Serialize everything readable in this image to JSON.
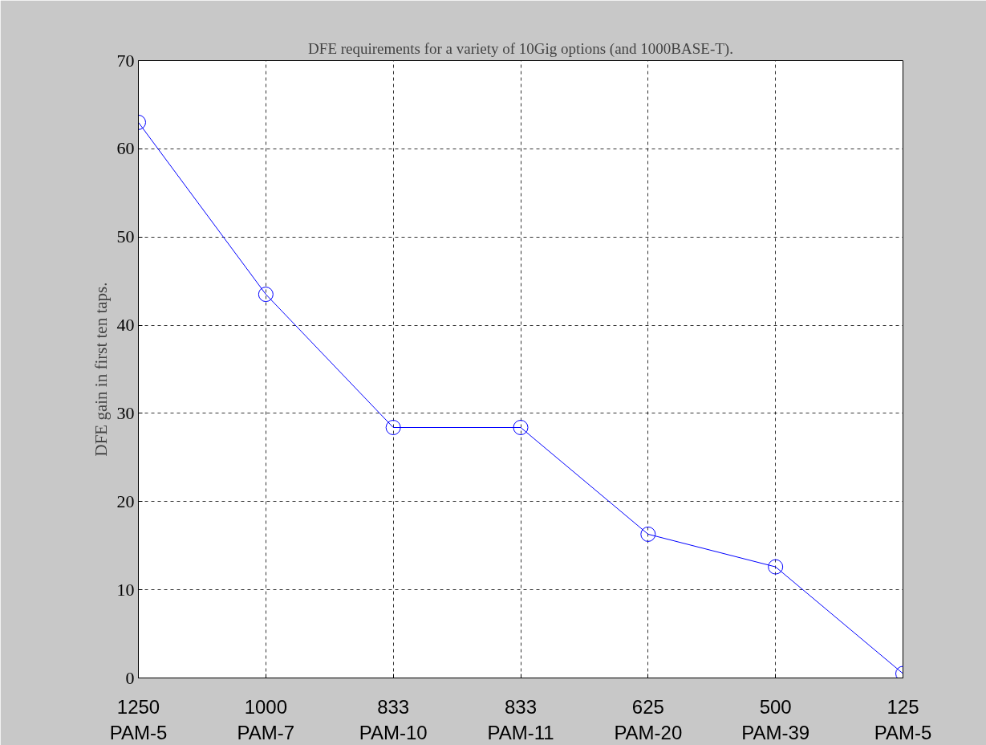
{
  "chart_data": {
    "type": "line",
    "title": "DFE requirements for a variety of 10Gig options (and 1000BASE-T).",
    "ylabel": "DFE gain in first ten taps.",
    "categories": [
      "1250\nPAM-5",
      "1000\nPAM-7",
      "833\nPAM-10",
      "833\nPAM-11",
      "625\nPAM-20",
      "500\nPAM-39",
      "125\nPAM-5"
    ],
    "series": [
      {
        "color": "#0000ff",
        "values": [
          63,
          43.5,
          28.4,
          28.4,
          16.3,
          12.6,
          0.5
        ]
      }
    ],
    "ylim": [
      0,
      70
    ],
    "yticks": [
      0,
      10,
      20,
      30,
      40,
      50,
      60,
      70
    ],
    "grid": true,
    "marker": "circle",
    "line_style": "solid"
  }
}
